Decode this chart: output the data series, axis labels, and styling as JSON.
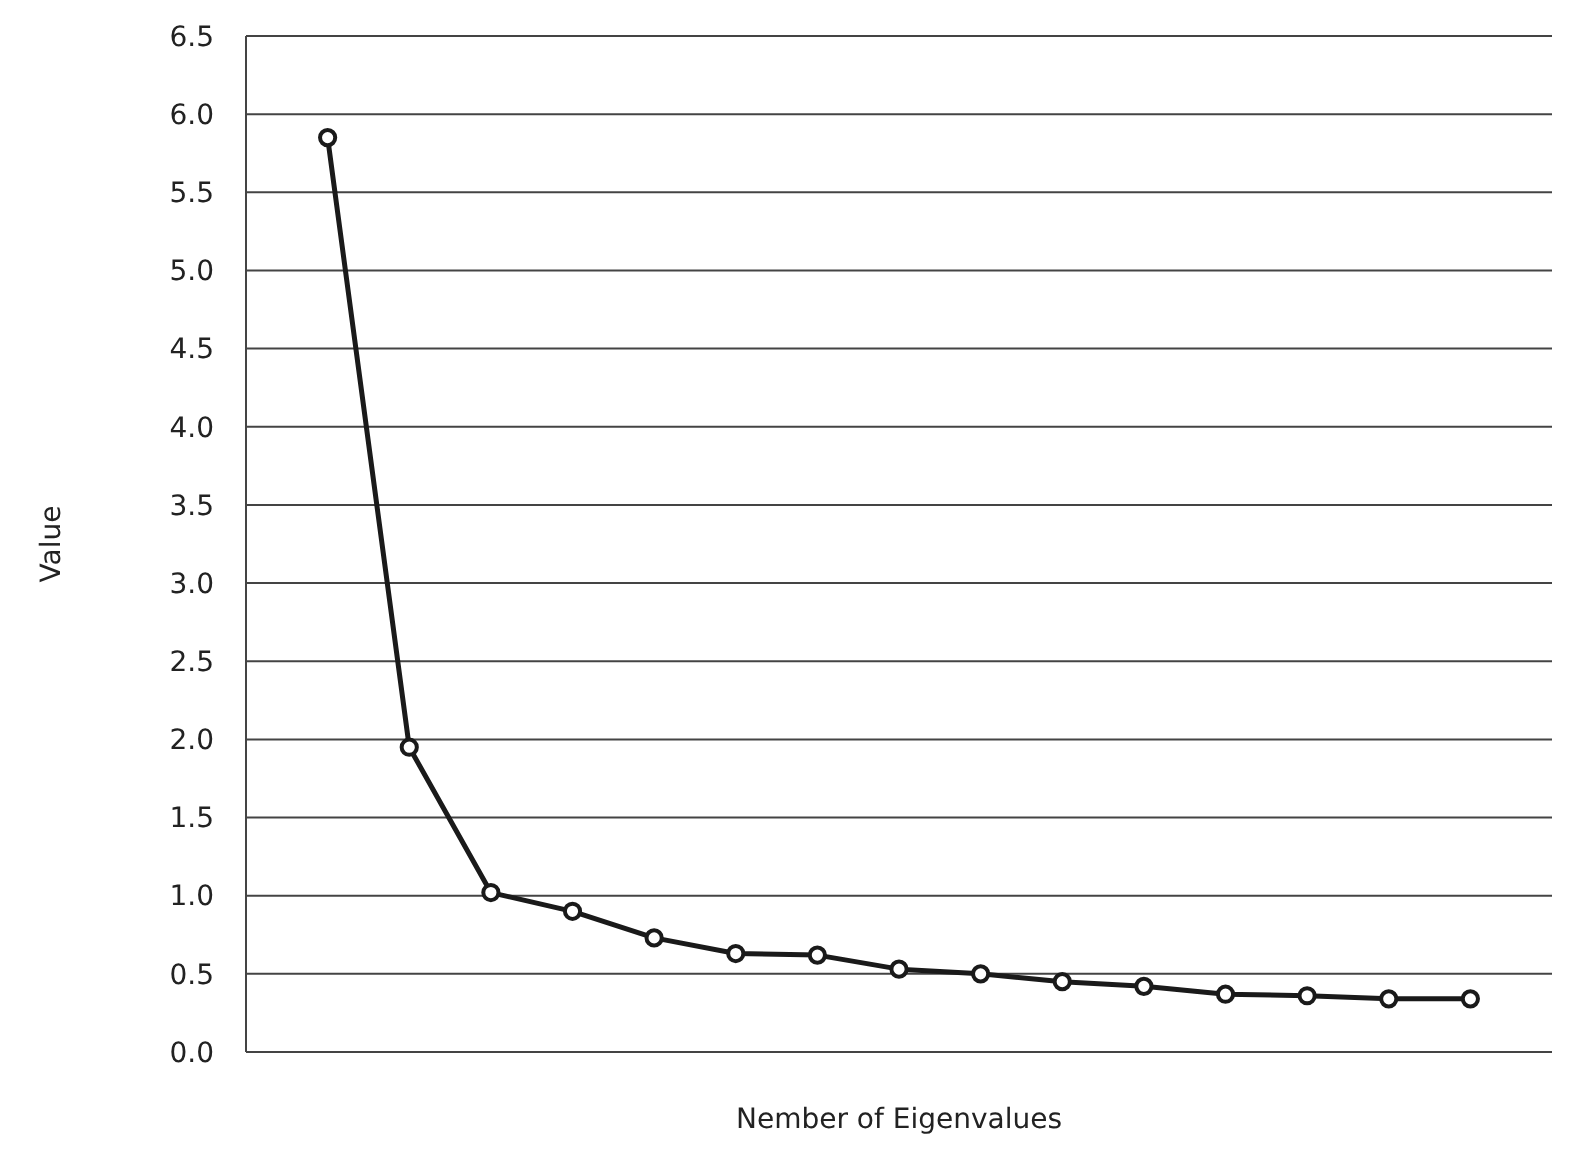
{
  "chart_data": {
    "type": "line",
    "xlabel": "Nember of Eigenvalues",
    "ylabel": "Value",
    "categories": [
      null,
      null,
      null,
      null,
      null,
      null,
      null,
      null,
      null,
      null,
      null,
      null,
      null,
      null,
      null
    ],
    "series": [
      {
        "color": "#1a1a1a",
        "values": [
          5.85,
          1.95,
          1.02,
          0.9,
          0.73,
          0.63,
          0.62,
          0.53,
          0.5,
          0.45,
          0.42,
          0.37,
          0.36,
          0.34,
          0.34
        ]
      }
    ],
    "ylim": [
      0,
      6.5
    ],
    "yticks": [
      {
        "value": 0,
        "label": "0.0"
      },
      {
        "value": 0.5,
        "label": "0.5"
      },
      {
        "value": 1,
        "label": "1.0"
      },
      {
        "value": 1.5,
        "label": "1.5"
      },
      {
        "value": 2,
        "label": "2.0"
      },
      {
        "value": 2.5,
        "label": "2.5"
      },
      {
        "value": 3,
        "label": "3.0"
      },
      {
        "value": 3.5,
        "label": "3.5"
      },
      {
        "value": 4,
        "label": "4.0"
      },
      {
        "value": 4.5,
        "label": "4.5"
      },
      {
        "value": 5,
        "label": "5.0"
      },
      {
        "value": 5.5,
        "label": "5.5"
      },
      {
        "value": 6,
        "label": "6.0"
      },
      {
        "value": 6.5,
        "label": "6.5"
      }
    ],
    "grid": "y",
    "marker": "circle",
    "line_style": "solid"
  }
}
